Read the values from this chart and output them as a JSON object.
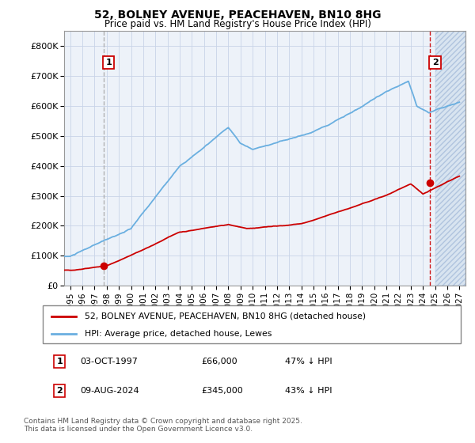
{
  "title": "52, BOLNEY AVENUE, PEACEHAVEN, BN10 8HG",
  "subtitle": "Price paid vs. HM Land Registry's House Price Index (HPI)",
  "legend_line1": "52, BOLNEY AVENUE, PEACEHAVEN, BN10 8HG (detached house)",
  "legend_line2": "HPI: Average price, detached house, Lewes",
  "footnote": "Contains HM Land Registry data © Crown copyright and database right 2025.\nThis data is licensed under the Open Government Licence v3.0.",
  "annotation1_label": "1",
  "annotation1_date": "03-OCT-1997",
  "annotation1_price": "£66,000",
  "annotation1_hpi": "47% ↓ HPI",
  "annotation2_label": "2",
  "annotation2_date": "09-AUG-2024",
  "annotation2_price": "£345,000",
  "annotation2_hpi": "43% ↓ HPI",
  "sale1_x": 1997.75,
  "sale1_y": 66000,
  "sale2_x": 2024.6,
  "sale2_y": 345000,
  "hpi_color": "#6aafe0",
  "price_color": "#cc0000",
  "grid_color": "#c8d4e8",
  "bg_color": "#edf2f9",
  "hatch_color": "#d8e4f0",
  "ylim": [
    0,
    850000
  ],
  "xlim": [
    1994.5,
    2027.5
  ],
  "hatch_start": 2025.0,
  "yticks": [
    0,
    100000,
    200000,
    300000,
    400000,
    500000,
    600000,
    700000,
    800000
  ],
  "ytick_labels": [
    "£0",
    "£100K",
    "£200K",
    "£300K",
    "£400K",
    "£500K",
    "£600K",
    "£700K",
    "£800K"
  ],
  "xticks": [
    1995,
    1996,
    1997,
    1998,
    1999,
    2000,
    2001,
    2002,
    2003,
    2004,
    2005,
    2006,
    2007,
    2008,
    2009,
    2010,
    2011,
    2012,
    2013,
    2014,
    2015,
    2016,
    2017,
    2018,
    2019,
    2020,
    2021,
    2022,
    2023,
    2024,
    2025,
    2026,
    2027
  ]
}
